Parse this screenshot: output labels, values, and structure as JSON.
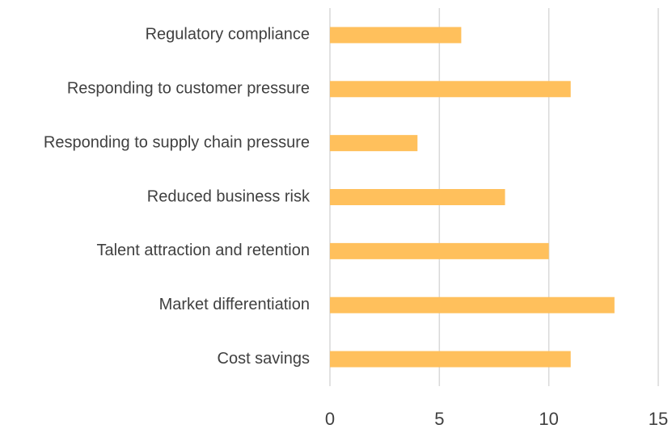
{
  "chart_data": {
    "type": "bar",
    "orientation": "horizontal",
    "categories": [
      "Regulatory compliance",
      "Responding to customer pressure",
      "Responding to supply chain pressure",
      "Reduced business risk",
      "Talent attraction and retention",
      "Market differentiation",
      "Cost savings"
    ],
    "values": [
      6,
      11,
      4,
      8,
      10,
      13,
      11
    ],
    "color": "#ffc05c",
    "xlim": [
      0,
      15
    ],
    "xticks": [
      0,
      5,
      10,
      15
    ],
    "grid": true
  }
}
